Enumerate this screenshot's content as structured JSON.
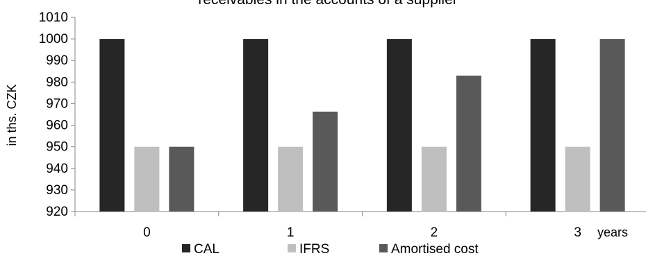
{
  "chart_data": {
    "type": "bar",
    "title": "receivables in the accounts of a supplier",
    "xlabel": "years",
    "ylabel": "in ths. CZK",
    "categories": [
      "0",
      "1",
      "2",
      "3"
    ],
    "series": [
      {
        "name": "CAL",
        "values": [
          1000,
          1000,
          1000,
          1000
        ],
        "color": "#262626"
      },
      {
        "name": "IFRS",
        "values": [
          950,
          950,
          950,
          950
        ],
        "color": "#bfbfbf"
      },
      {
        "name": "Amortised cost",
        "values": [
          950,
          966.3,
          983,
          1000
        ],
        "color": "#595959"
      }
    ],
    "ylim": [
      920,
      1010
    ],
    "yticks": [
      920,
      930,
      940,
      950,
      960,
      970,
      980,
      990,
      1000,
      1010
    ],
    "grid": false,
    "legend": "bottom"
  }
}
